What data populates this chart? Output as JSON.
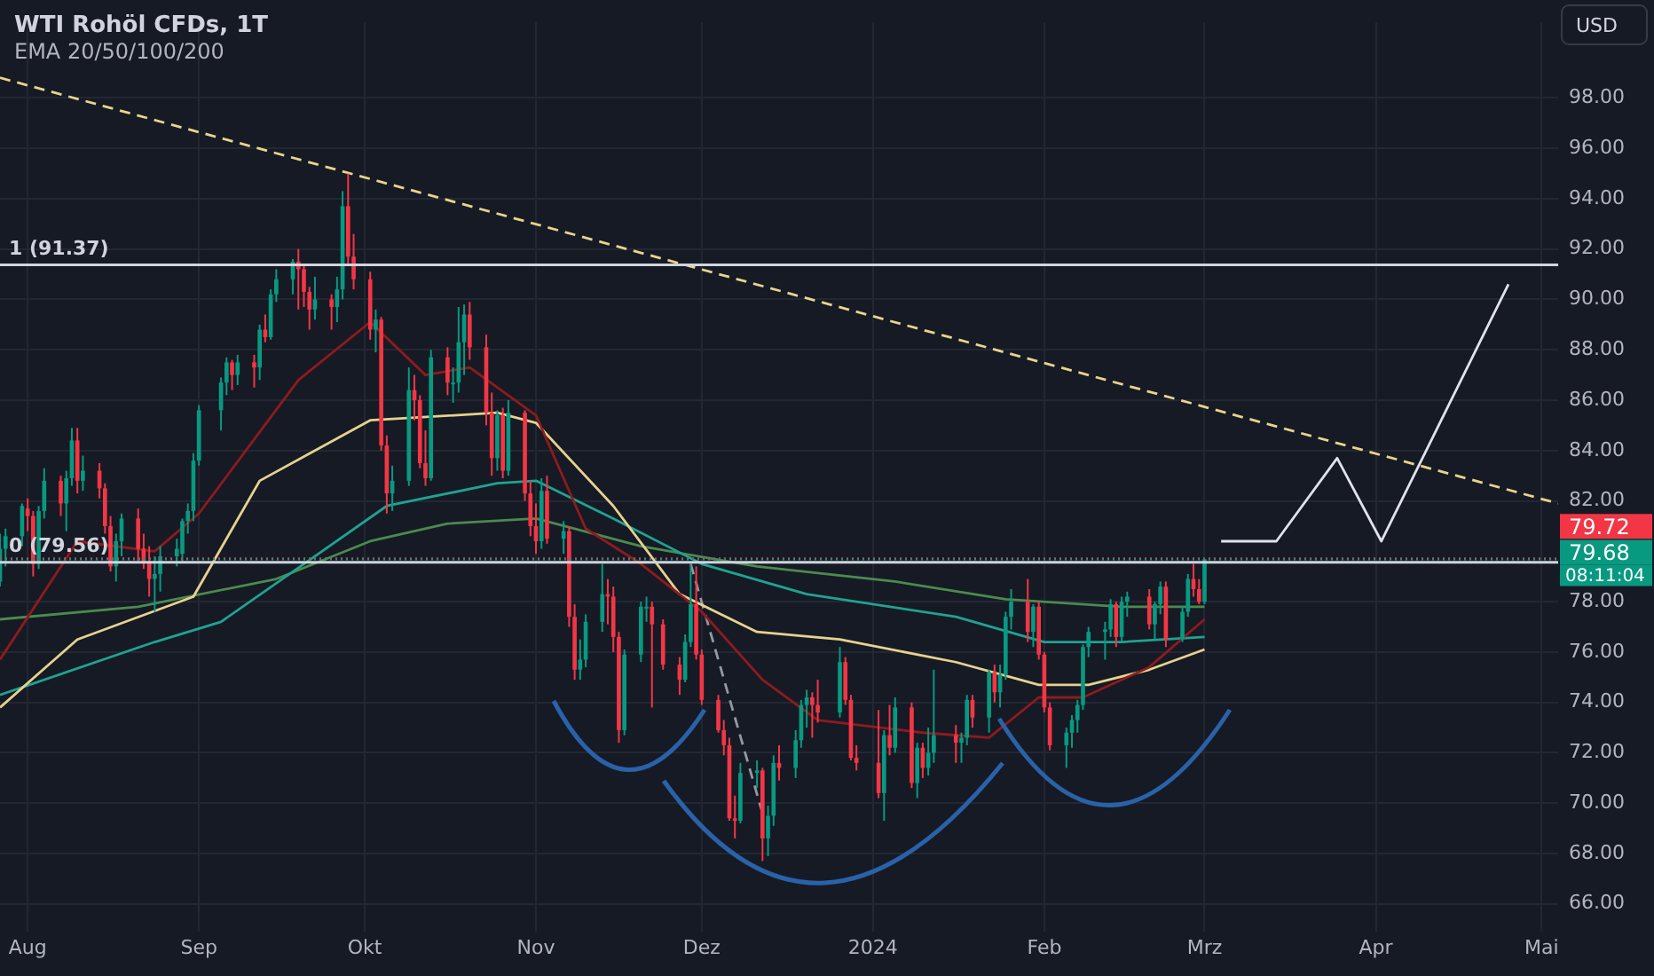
{
  "chart_data": {
    "type": "candlestick",
    "title": "WTI Rohöl CFDs, 1T",
    "subtitle": "EMA 20/50/100/200",
    "x": [
      "2023-07-27",
      "2023-07-28",
      "2023-07-31",
      "2023-08-01",
      "2023-08-02",
      "2023-08-03",
      "2023-08-04",
      "2023-08-07",
      "2023-08-08",
      "2023-08-09",
      "2023-08-10",
      "2023-08-11",
      "2023-08-14",
      "2023-08-15",
      "2023-08-16",
      "2023-08-17",
      "2023-08-18",
      "2023-08-21",
      "2023-08-22",
      "2023-08-23",
      "2023-08-24",
      "2023-08-25",
      "2023-08-28",
      "2023-08-29",
      "2023-08-30",
      "2023-08-31",
      "2023-09-01",
      "2023-09-05",
      "2023-09-06",
      "2023-09-07",
      "2023-09-08",
      "2023-09-11",
      "2023-09-12",
      "2023-09-13",
      "2023-09-14",
      "2023-09-15",
      "2023-09-18",
      "2023-09-19",
      "2023-09-20",
      "2023-09-21",
      "2023-09-22",
      "2023-09-25",
      "2023-09-26",
      "2023-09-27",
      "2023-09-28",
      "2023-09-29",
      "2023-10-02",
      "2023-10-03",
      "2023-10-04",
      "2023-10-05",
      "2023-10-06",
      "2023-10-09",
      "2023-10-10",
      "2023-10-11",
      "2023-10-12",
      "2023-10-13",
      "2023-10-16",
      "2023-10-17",
      "2023-10-18",
      "2023-10-19",
      "2023-10-20",
      "2023-10-23",
      "2023-10-24",
      "2023-10-25",
      "2023-10-26",
      "2023-10-27",
      "2023-10-30",
      "2023-10-31",
      "2023-11-01",
      "2023-11-02",
      "2023-11-03",
      "2023-11-06",
      "2023-11-07",
      "2023-11-08",
      "2023-11-09",
      "2023-11-10",
      "2023-11-13",
      "2023-11-14",
      "2023-11-15",
      "2023-11-16",
      "2023-11-17",
      "2023-11-20",
      "2023-11-21",
      "2023-11-22",
      "2023-11-24",
      "2023-11-27",
      "2023-11-28",
      "2023-11-29",
      "2023-11-30",
      "2023-12-01",
      "2023-12-04",
      "2023-12-05",
      "2023-12-06",
      "2023-12-07",
      "2023-12-08",
      "2023-12-11",
      "2023-12-12",
      "2023-12-13",
      "2023-12-14",
      "2023-12-15",
      "2023-12-18",
      "2023-12-19",
      "2023-12-20",
      "2023-12-21",
      "2023-12-22",
      "2023-12-26",
      "2023-12-27",
      "2023-12-28",
      "2023-12-29",
      "2024-01-02",
      "2024-01-03",
      "2024-01-04",
      "2024-01-05",
      "2024-01-08",
      "2024-01-09",
      "2024-01-10",
      "2024-01-11",
      "2024-01-12",
      "2024-01-16",
      "2024-01-17",
      "2024-01-18",
      "2024-01-19",
      "2024-01-22",
      "2024-01-23",
      "2024-01-24",
      "2024-01-25",
      "2024-01-26",
      "2024-01-29",
      "2024-01-30",
      "2024-01-31",
      "2024-02-01",
      "2024-02-02",
      "2024-02-05",
      "2024-02-06",
      "2024-02-07",
      "2024-02-08",
      "2024-02-09",
      "2024-02-12",
      "2024-02-13",
      "2024-02-14",
      "2024-02-15",
      "2024-02-16",
      "2024-02-20",
      "2024-02-21",
      "2024-02-22",
      "2024-02-23",
      "2024-02-26",
      "2024-02-27",
      "2024-02-28",
      "2024-02-29",
      "2024-03-01"
    ],
    "ohlc": [
      [
        78.8,
        80.7,
        78.6,
        80.1
      ],
      [
        80.1,
        80.9,
        79.4,
        80.6
      ],
      [
        80.6,
        81.9,
        80.2,
        81.8
      ],
      [
        81.7,
        82.1,
        80.8,
        81.4
      ],
      [
        81.4,
        81.6,
        79.0,
        79.5
      ],
      [
        79.5,
        81.8,
        79.3,
        81.6
      ],
      [
        81.6,
        83.3,
        81.3,
        82.8
      ],
      [
        82.8,
        83.0,
        81.4,
        81.9
      ],
      [
        81.9,
        83.2,
        80.8,
        82.9
      ],
      [
        82.9,
        84.9,
        82.6,
        84.4
      ],
      [
        84.4,
        84.9,
        82.3,
        82.8
      ],
      [
        82.8,
        83.8,
        82.4,
        83.2
      ],
      [
        83.2,
        83.5,
        82.1,
        82.5
      ],
      [
        82.5,
        82.7,
        80.7,
        81.0
      ],
      [
        81.0,
        81.4,
        79.2,
        79.4
      ],
      [
        79.4,
        80.7,
        78.8,
        80.4
      ],
      [
        80.4,
        81.5,
        79.8,
        81.3
      ],
      [
        81.3,
        81.7,
        79.6,
        80.1
      ],
      [
        80.1,
        80.7,
        79.3,
        79.6
      ],
      [
        79.6,
        80.2,
        78.2,
        78.9
      ],
      [
        78.9,
        79.8,
        77.6,
        79.1
      ],
      [
        79.1,
        80.2,
        78.4,
        79.8
      ],
      [
        79.8,
        80.5,
        79.4,
        80.1
      ],
      [
        79.9,
        81.3,
        79.6,
        81.2
      ],
      [
        81.2,
        81.9,
        80.7,
        81.6
      ],
      [
        81.6,
        83.9,
        81.2,
        83.6
      ],
      [
        83.6,
        85.8,
        83.4,
        85.6
      ],
      [
        85.6,
        86.9,
        84.8,
        86.7
      ],
      [
        86.7,
        87.7,
        86.2,
        87.5
      ],
      [
        87.5,
        87.6,
        86.4,
        87.0
      ],
      [
        87.0,
        87.8,
        86.6,
        87.5
      ],
      [
        87.5,
        87.8,
        86.5,
        87.3
      ],
      [
        87.3,
        89.0,
        86.8,
        88.8
      ],
      [
        88.8,
        89.4,
        88.3,
        88.5
      ],
      [
        88.5,
        90.4,
        88.4,
        90.2
      ],
      [
        90.2,
        91.2,
        89.9,
        90.8
      ],
      [
        90.8,
        91.6,
        90.2,
        91.5
      ],
      [
        91.5,
        92.0,
        89.6,
        91.2
      ],
      [
        91.2,
        91.4,
        89.7,
        90.3
      ],
      [
        90.3,
        90.5,
        88.8,
        89.6
      ],
      [
        89.6,
        90.9,
        89.2,
        90.0
      ],
      [
        90.0,
        90.2,
        88.8,
        89.7
      ],
      [
        89.7,
        90.9,
        89.1,
        90.4
      ],
      [
        90.4,
        94.3,
        90.0,
        93.7
      ],
      [
        93.7,
        95.0,
        91.4,
        91.7
      ],
      [
        91.7,
        92.6,
        90.4,
        90.8
      ],
      [
        90.8,
        91.1,
        88.4,
        88.8
      ],
      [
        88.8,
        89.6,
        87.9,
        89.2
      ],
      [
        89.2,
        89.3,
        84.0,
        84.2
      ],
      [
        84.2,
        84.6,
        81.5,
        82.3
      ],
      [
        82.3,
        83.4,
        81.6,
        82.8
      ],
      [
        82.8,
        87.3,
        82.6,
        86.4
      ],
      [
        86.4,
        87.0,
        85.2,
        86.0
      ],
      [
        86.0,
        86.2,
        83.3,
        83.5
      ],
      [
        83.5,
        84.8,
        82.6,
        82.9
      ],
      [
        82.9,
        88.0,
        82.8,
        87.7
      ],
      [
        87.7,
        88.1,
        86.2,
        86.7
      ],
      [
        86.7,
        87.3,
        85.9,
        86.7
      ],
      [
        86.7,
        89.7,
        86.3,
        88.3
      ],
      [
        88.3,
        89.8,
        87.0,
        89.4
      ],
      [
        89.4,
        89.9,
        87.6,
        88.1
      ],
      [
        88.1,
        88.6,
        85.0,
        85.5
      ],
      [
        85.5,
        86.3,
        83.0,
        83.7
      ],
      [
        83.7,
        85.6,
        83.2,
        85.4
      ],
      [
        85.4,
        85.7,
        82.9,
        83.2
      ],
      [
        83.2,
        86.0,
        83.0,
        85.5
      ],
      [
        85.5,
        85.6,
        82.0,
        82.3
      ],
      [
        82.3,
        82.8,
        80.6,
        81.0
      ],
      [
        81.0,
        81.9,
        79.9,
        80.4
      ],
      [
        80.4,
        82.9,
        80.1,
        82.4
      ],
      [
        82.4,
        83.0,
        80.3,
        80.5
      ],
      [
        80.5,
        81.2,
        79.9,
        80.8
      ],
      [
        80.8,
        81.0,
        77.0,
        77.4
      ],
      [
        77.4,
        77.9,
        74.9,
        75.3
      ],
      [
        75.3,
        76.5,
        74.9,
        75.7
      ],
      [
        75.7,
        77.5,
        75.4,
        77.2
      ],
      [
        77.2,
        79.5,
        76.8,
        78.3
      ],
      [
        78.3,
        78.9,
        77.1,
        78.2
      ],
      [
        78.2,
        78.6,
        76.0,
        76.6
      ],
      [
        76.6,
        76.8,
        72.4,
        72.9
      ],
      [
        72.9,
        76.1,
        72.7,
        75.9
      ],
      [
        75.9,
        78.0,
        75.6,
        77.8
      ],
      [
        77.8,
        78.2,
        77.2,
        77.8
      ],
      [
        77.8,
        78.0,
        73.8,
        77.1
      ],
      [
        77.1,
        77.3,
        75.3,
        75.5
      ],
      [
        75.5,
        75.8,
        74.3,
        74.9
      ],
      [
        74.9,
        76.7,
        74.8,
        76.4
      ],
      [
        76.4,
        79.5,
        76.2,
        77.9
      ],
      [
        77.9,
        79.4,
        75.7,
        75.9
      ],
      [
        75.9,
        76.1,
        73.9,
        74.1
      ],
      [
        74.1,
        74.3,
        72.8,
        72.9
      ],
      [
        72.9,
        73.3,
        71.9,
        72.3
      ],
      [
        72.3,
        72.6,
        69.3,
        69.4
      ],
      [
        69.4,
        70.3,
        68.6,
        69.3
      ],
      [
        69.3,
        71.6,
        69.2,
        71.2
      ],
      [
        71.2,
        71.7,
        70.6,
        71.3
      ],
      [
        71.3,
        71.4,
        67.7,
        68.6
      ],
      [
        68.6,
        69.9,
        67.9,
        69.5
      ],
      [
        69.5,
        71.9,
        69.1,
        71.6
      ],
      [
        71.6,
        72.3,
        70.9,
        71.4
      ],
      [
        71.4,
        72.9,
        71.0,
        72.5
      ],
      [
        72.5,
        74.1,
        72.2,
        73.9
      ],
      [
        73.9,
        74.5,
        73.0,
        74.2
      ],
      [
        74.2,
        74.4,
        72.6,
        73.9
      ],
      [
        73.9,
        74.9,
        73.2,
        73.6
      ],
      [
        73.6,
        76.2,
        73.4,
        75.6
      ],
      [
        75.6,
        75.8,
        73.9,
        74.1
      ],
      [
        74.1,
        74.3,
        71.7,
        71.8
      ],
      [
        71.8,
        72.3,
        71.3,
        71.6
      ],
      [
        71.6,
        73.7,
        70.2,
        70.4
      ],
      [
        70.4,
        72.9,
        69.3,
        72.7
      ],
      [
        72.7,
        73.9,
        71.9,
        72.2
      ],
      [
        72.2,
        74.2,
        72.0,
        73.8
      ],
      [
        73.8,
        74.0,
        70.6,
        70.8
      ],
      [
        70.8,
        72.4,
        70.2,
        72.2
      ],
      [
        72.2,
        72.4,
        71.0,
        71.4
      ],
      [
        71.4,
        73.0,
        71.1,
        72.0
      ],
      [
        72.0,
        75.3,
        71.6,
        72.7
      ],
      [
        72.7,
        73.1,
        71.6,
        72.4
      ],
      [
        72.4,
        72.8,
        71.6,
        72.6
      ],
      [
        72.6,
        74.3,
        72.3,
        74.1
      ],
      [
        74.1,
        74.3,
        73.0,
        73.4
      ],
      [
        73.4,
        75.3,
        72.8,
        75.2
      ],
      [
        75.2,
        75.5,
        74.0,
        74.4
      ],
      [
        74.4,
        75.5,
        73.8,
        75.1
      ],
      [
        75.1,
        77.6,
        74.9,
        77.4
      ],
      [
        77.4,
        78.5,
        76.9,
        78.0
      ],
      [
        78.0,
        78.9,
        76.4,
        76.8
      ],
      [
        76.8,
        77.9,
        76.2,
        77.8
      ],
      [
        77.8,
        78.0,
        75.7,
        75.9
      ],
      [
        75.9,
        76.0,
        73.6,
        73.8
      ],
      [
        73.8,
        74.0,
        72.1,
        72.3
      ],
      [
        72.3,
        73.0,
        71.4,
        72.8
      ],
      [
        72.8,
        73.5,
        72.2,
        73.3
      ],
      [
        73.3,
        74.1,
        72.8,
        73.9
      ],
      [
        73.9,
        76.3,
        73.7,
        76.2
      ],
      [
        76.2,
        77.0,
        75.8,
        76.8
      ],
      [
        76.8,
        77.2,
        75.7,
        76.9
      ],
      [
        76.9,
        78.1,
        76.6,
        77.9
      ],
      [
        77.9,
        78.0,
        76.2,
        76.6
      ],
      [
        76.6,
        78.2,
        76.4,
        78.0
      ],
      [
        78.0,
        78.4,
        77.4,
        78.2
      ],
      [
        78.2,
        78.5,
        76.9,
        77.1
      ],
      [
        77.1,
        78.0,
        76.5,
        77.9
      ],
      [
        77.9,
        78.8,
        77.5,
        78.6
      ],
      [
        78.6,
        78.8,
        76.2,
        76.5
      ],
      [
        76.5,
        77.8,
        76.4,
        77.6
      ],
      [
        77.6,
        79.1,
        77.4,
        78.9
      ],
      [
        78.9,
        79.5,
        78.2,
        78.5
      ],
      [
        78.5,
        78.9,
        77.9,
        78.0
      ],
      [
        78.0,
        79.7,
        77.9,
        79.68
      ]
    ],
    "colors": [
      "#089981",
      "#089981",
      "#089981",
      "#f23645",
      "#f23645",
      "#089981",
      "#089981",
      "#f23645",
      "#089981",
      "#089981",
      "#f23645",
      "#089981",
      "#f23645",
      "#f23645",
      "#f23645",
      "#089981",
      "#089981",
      "#f23645",
      "#f23645",
      "#f23645",
      "#089981",
      "#089981",
      "#089981",
      "#089981",
      "#089981",
      "#089981",
      "#089981",
      "#089981",
      "#089981",
      "#f23645",
      "#089981",
      "#f23645",
      "#089981",
      "#f23645",
      "#089981",
      "#089981",
      "#089981",
      "#f23645",
      "#f23645",
      "#f23645",
      "#089981",
      "#f23645",
      "#089981",
      "#089981",
      "#f23645",
      "#f23645",
      "#f23645",
      "#089981",
      "#f23645",
      "#f23645",
      "#089981",
      "#089981",
      "#f23645",
      "#f23645",
      "#f23645",
      "#089981",
      "#f23645",
      "#089981",
      "#089981",
      "#089981",
      "#f23645",
      "#f23645",
      "#f23645",
      "#089981",
      "#f23645",
      "#089981",
      "#f23645",
      "#f23645",
      "#f23645",
      "#089981",
      "#f23645",
      "#089981",
      "#f23645",
      "#f23645",
      "#089981",
      "#089981",
      "#089981",
      "#f23645",
      "#f23645",
      "#f23645",
      "#089981",
      "#089981",
      "#089981",
      "#f23645",
      "#f23645",
      "#f23645",
      "#089981",
      "#089981",
      "#f23645",
      "#f23645",
      "#f23645",
      "#f23645",
      "#f23645",
      "#f23645",
      "#089981",
      "#089981",
      "#f23645",
      "#089981",
      "#089981",
      "#f23645",
      "#089981",
      "#089981",
      "#089981",
      "#f23645",
      "#f23645",
      "#089981",
      "#f23645",
      "#f23645",
      "#f23645",
      "#f23645",
      "#089981",
      "#f23645",
      "#089981",
      "#f23645",
      "#089981",
      "#f23645",
      "#089981",
      "#089981",
      "#f23645",
      "#089981",
      "#089981",
      "#f23645",
      "#089981",
      "#f23645",
      "#089981",
      "#089981",
      "#089981",
      "#f23645",
      "#089981",
      "#f23645",
      "#f23645",
      "#f23645",
      "#089981",
      "#089981",
      "#089981",
      "#089981",
      "#089981",
      "#089981",
      "#089981",
      "#f23645",
      "#089981",
      "#089981",
      "#f23645",
      "#089981",
      "#089981",
      "#f23645",
      "#089981",
      "#089981",
      "#f23645",
      "#f23645",
      "#089981"
    ],
    "series": [
      {
        "type": "line",
        "color": "#8e1b1e",
        "x": [
          "2023-07-27",
          "2023-08-10",
          "2023-08-24",
          "2023-09-01",
          "2023-09-19",
          "2023-10-02",
          "2023-10-12",
          "2023-10-20",
          "2023-11-01",
          "2023-11-10",
          "2023-11-20",
          "2023-12-01",
          "2023-12-12",
          "2023-12-22",
          "2024-01-10",
          "2024-01-22",
          "2024-01-31",
          "2024-02-08",
          "2024-02-20",
          "2024-03-01"
        ],
        "values": [
          75.7,
          80.4,
          80.0,
          81.5,
          86.8,
          89.1,
          87.0,
          87.3,
          85.4,
          80.9,
          79.5,
          77.6,
          74.9,
          73.3,
          72.8,
          72.6,
          74.2,
          74.2,
          75.4,
          77.3
        ]
      },
      {
        "type": "line",
        "color": "#e6d28e",
        "x": [
          "2023-07-27",
          "2023-08-10",
          "2023-08-31",
          "2023-09-12",
          "2023-10-02",
          "2023-10-25",
          "2023-11-01",
          "2023-11-15",
          "2023-11-27",
          "2023-12-11",
          "2023-12-26",
          "2024-01-16",
          "2024-01-31",
          "2024-02-09",
          "2024-02-20",
          "2024-03-01"
        ],
        "values": [
          73.8,
          76.5,
          78.2,
          82.8,
          85.2,
          85.5,
          85.1,
          81.8,
          78.3,
          76.8,
          76.5,
          75.6,
          74.7,
          74.7,
          75.3,
          76.1
        ]
      },
      {
        "type": "line",
        "color": "#1fa391",
        "x": [
          "2023-07-27",
          "2023-08-24",
          "2023-09-05",
          "2023-09-20",
          "2023-10-05",
          "2023-10-25",
          "2023-11-01",
          "2023-11-15",
          "2023-12-01",
          "2023-12-20",
          "2024-01-16",
          "2024-02-01",
          "2024-02-15",
          "2024-03-01"
        ],
        "values": [
          74.3,
          76.4,
          77.2,
          79.5,
          81.8,
          82.7,
          82.8,
          81.3,
          79.5,
          78.3,
          77.4,
          76.4,
          76.4,
          76.6
        ]
      },
      {
        "type": "line",
        "color": "#4c8a4e",
        "x": [
          "2023-07-27",
          "2023-08-21",
          "2023-09-15",
          "2023-10-02",
          "2023-10-16",
          "2023-11-01",
          "2023-11-20",
          "2023-12-11",
          "2024-01-05",
          "2024-01-25",
          "2024-02-15",
          "2024-03-01"
        ],
        "values": [
          77.3,
          77.8,
          78.9,
          80.4,
          81.1,
          81.3,
          80.2,
          79.4,
          78.8,
          78.1,
          77.8,
          77.8
        ]
      },
      {
        "type": "line",
        "color": "#e8d48a",
        "line_style": "dashed",
        "x": [
          "2023-07-27",
          "2024-05-04"
        ],
        "values": [
          98.8,
          81.9
        ]
      },
      {
        "type": "line",
        "color": "#9598a1",
        "line_style": "dashed",
        "x": [
          "2023-11-29",
          "2023-12-12"
        ],
        "values": [
          79.5,
          69.6
        ]
      },
      {
        "type": "line",
        "color": "#e0e3eb",
        "x": [
          "2024-03-04",
          "2024-03-14",
          "2024-03-25",
          "2024-04-02",
          "2024-04-25"
        ],
        "values": [
          80.4,
          80.4,
          83.7,
          80.4,
          90.6
        ]
      }
    ],
    "xlim": [
      "2023-07-27",
      "2024-05-04"
    ],
    "xticks": [
      {
        "value": "2023-08-01",
        "label": "Aug"
      },
      {
        "value": "2023-09-01",
        "label": "Sep"
      },
      {
        "value": "2023-10-01",
        "label": "Okt"
      },
      {
        "value": "2023-11-01",
        "label": "Nov"
      },
      {
        "value": "2023-12-01",
        "label": "Dez"
      },
      {
        "value": "2024-01-01",
        "label": "2024"
      },
      {
        "value": "2024-02-01",
        "label": "Feb"
      },
      {
        "value": "2024-03-01",
        "label": "Mrz"
      },
      {
        "value": "2024-04-01",
        "label": "Apr"
      },
      {
        "value": "2024-05-01",
        "label": "Mai"
      }
    ],
    "ylim": [
      64.9,
      101.0
    ],
    "yticks": [
      {
        "value": 66,
        "label": "66.00"
      },
      {
        "value": 68,
        "label": "68.00"
      },
      {
        "value": 70,
        "label": "70.00"
      },
      {
        "value": 72,
        "label": "72.00"
      },
      {
        "value": 74,
        "label": "74.00"
      },
      {
        "value": 76,
        "label": "76.00"
      },
      {
        "value": 78,
        "label": "78.00"
      },
      {
        "value": 82,
        "label": "82.00"
      },
      {
        "value": 84,
        "label": "84.00"
      },
      {
        "value": 86,
        "label": "86.00"
      },
      {
        "value": 88,
        "label": "88.00"
      },
      {
        "value": 90,
        "label": "90.00"
      },
      {
        "value": 92,
        "label": "92.00"
      },
      {
        "value": 94,
        "label": "94.00"
      },
      {
        "value": 96,
        "label": "96.00"
      },
      {
        "value": 98,
        "label": "98.00"
      }
    ],
    "ref_lines": [
      {
        "axis": "y",
        "value": 91.37,
        "label": "1 (91.37)",
        "color": "#d1d4dc",
        "line_style": "solid"
      },
      {
        "axis": "y",
        "value": 79.56,
        "label": "0 (79.56)",
        "color": "#d1d4dc",
        "line_style": "solid"
      },
      {
        "axis": "y",
        "value": 79.72,
        "label": "79.72",
        "color": "#f23645",
        "line_style": "dotted"
      },
      {
        "axis": "y",
        "value": 79.68,
        "label": "79.68",
        "color": "#089981",
        "line_style": "dotted"
      }
    ],
    "annotations": [
      "USD",
      "08:11:04"
    ],
    "grid": true,
    "legend": false,
    "marker": "none"
  }
}
